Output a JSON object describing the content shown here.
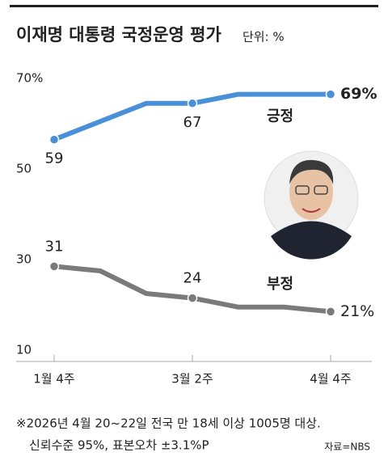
{
  "chart_data": {
    "type": "line",
    "title": "이재명 대통령 국정운영 평가",
    "unit": "단위: %",
    "categories": [
      "1월 4주",
      null,
      null,
      "3월 2주",
      null,
      null,
      "4월 4주"
    ],
    "series": [
      {
        "name": "긍정",
        "color": "#4a90d9",
        "values": [
          59,
          63,
          67,
          67,
          69,
          69,
          69
        ],
        "value_labels": [
          "59",
          null,
          null,
          "67",
          null,
          null,
          "69%"
        ]
      },
      {
        "name": "부정",
        "color": "#7a7a7a",
        "values": [
          31,
          30,
          25,
          24,
          22,
          22,
          21
        ],
        "value_labels": [
          "31",
          null,
          null,
          "24",
          null,
          null,
          "21%"
        ]
      }
    ],
    "ylim": [
      10,
      70
    ],
    "yticks": [
      {
        "value": 70,
        "label": "70%"
      },
      50,
      30,
      10
    ],
    "grid": false,
    "footnote": [
      "※2026년 4월 20~22일 전국 만 18세 이상 1005명 대상.",
      "신뢰수준 95%, 표본오차 ±3.1%P"
    ],
    "source": "자료=NBS"
  }
}
